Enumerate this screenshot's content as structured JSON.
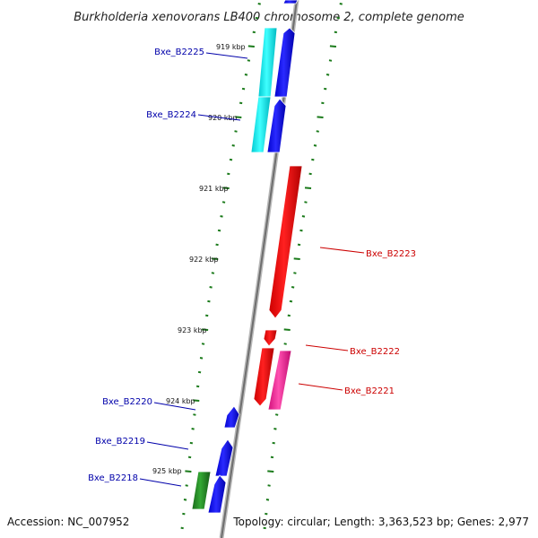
{
  "title": "Burkholderia xenovorans LB400 chromosome 2, complete genome",
  "footer": {
    "accession": "Accession: NC_007952",
    "stats": "Topology: circular; Length: 3,363,523 bp; Genes: 2,977"
  },
  "scale_labels": [
    "919 kbp",
    "920 kbp",
    "921 kbp",
    "922 kbp",
    "923 kbp",
    "924 kbp",
    "925 kbp"
  ],
  "colors": {
    "forward_gene": "#0000ee",
    "reverse_gene": "#ee0000",
    "cyan_feature": "#00e5ee",
    "magenta_feature": "#ee1493",
    "green_feature": "#228b22",
    "tick": "#1a7a1a",
    "backbone": "#888888",
    "forward_label": "#0000aa",
    "reverse_label": "#cc0000"
  },
  "genes": [
    {
      "name": "Bxe_B2225",
      "strand": "forward"
    },
    {
      "name": "Bxe_B2224",
      "strand": "forward"
    },
    {
      "name": "Bxe_B2223",
      "strand": "reverse"
    },
    {
      "name": "Bxe_B2222",
      "strand": "reverse"
    },
    {
      "name": "Bxe_B2221",
      "strand": "reverse"
    },
    {
      "name": "Bxe_B2220",
      "strand": "forward"
    },
    {
      "name": "Bxe_B2219",
      "strand": "forward"
    },
    {
      "name": "Bxe_B2218",
      "strand": "forward"
    }
  ]
}
